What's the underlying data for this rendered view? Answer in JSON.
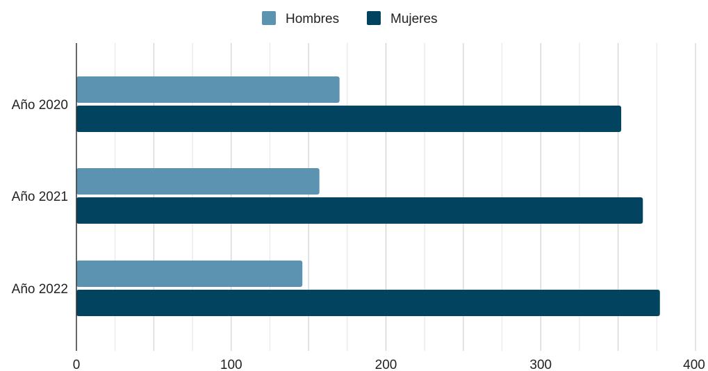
{
  "chart_data": {
    "type": "bar",
    "orientation": "horizontal",
    "categories": [
      "Año 2020",
      "Año 2021",
      "Año 2022"
    ],
    "series": [
      {
        "name": "Hombres",
        "values": [
          170,
          157,
          146
        ],
        "color": "#5b93b1"
      },
      {
        "name": "Mujeres",
        "values": [
          352,
          366,
          377
        ],
        "color": "#02445f"
      }
    ],
    "x_ticks": [
      0,
      100,
      200,
      300,
      400
    ],
    "xlim": [
      0,
      400
    ],
    "grid": true,
    "legend_position": "top-center",
    "title": "",
    "xlabel": "",
    "ylabel": ""
  }
}
